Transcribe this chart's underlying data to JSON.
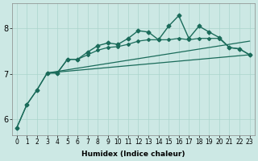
{
  "xlabel": "Humidex (Indice chaleur)",
  "bg_color": "#cce8e4",
  "line_color": "#1a6b5a",
  "grid_color": "#aad4cc",
  "xlim": [
    -0.5,
    23.5
  ],
  "ylim": [
    5.65,
    8.55
  ],
  "xticks": [
    0,
    1,
    2,
    3,
    4,
    5,
    6,
    7,
    8,
    9,
    10,
    11,
    12,
    13,
    14,
    15,
    16,
    17,
    18,
    19,
    20,
    21,
    22,
    23
  ],
  "yticks": [
    6,
    7,
    8
  ],
  "x": [
    0,
    1,
    2,
    3,
    4,
    5,
    6,
    7,
    8,
    9,
    10,
    11,
    12,
    13,
    14,
    15,
    16,
    17,
    18,
    19,
    20,
    21,
    22,
    23
  ],
  "y_main": [
    5.82,
    6.33,
    6.65,
    7.02,
    7.02,
    7.32,
    7.32,
    7.48,
    7.62,
    7.68,
    7.65,
    7.78,
    7.95,
    7.92,
    7.75,
    8.05,
    8.28,
    7.78,
    8.05,
    7.92,
    7.8,
    7.58,
    7.55,
    7.42
  ],
  "y_smooth": [
    5.82,
    6.33,
    6.65,
    7.02,
    7.02,
    7.32,
    7.32,
    7.42,
    7.52,
    7.58,
    7.6,
    7.65,
    7.72,
    7.75,
    7.75,
    7.75,
    7.78,
    7.75,
    7.78,
    7.78,
    7.78,
    7.58,
    7.55,
    7.42
  ],
  "trend1_x": [
    3,
    23
  ],
  "trend1_y": [
    7.02,
    7.42
  ],
  "trend2_x": [
    3,
    23
  ],
  "trend2_y": [
    7.02,
    7.72
  ]
}
